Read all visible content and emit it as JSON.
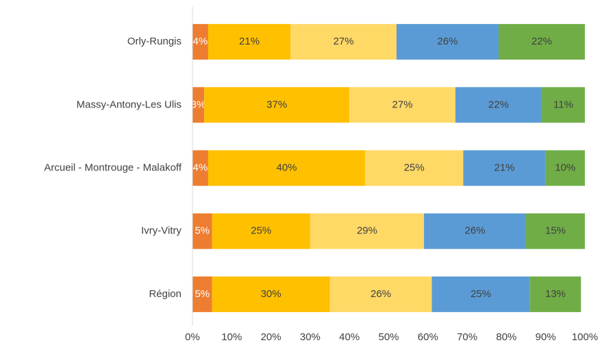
{
  "chart_data": {
    "type": "stacked-bar-horizontal",
    "categories": [
      "Orly-Rungis",
      "Massy-Antony-Les Ulis",
      "Arcueil - Montrouge - Malakoff",
      "Ivry-Vitry",
      "Région"
    ],
    "series": [
      {
        "color": "#ED7D31",
        "values": [
          4,
          3,
          4,
          5,
          5
        ],
        "value_labels": [
          "4%",
          "3%",
          "4%",
          "5%",
          "5%"
        ]
      },
      {
        "color": "#FFC000",
        "values": [
          21,
          37,
          40,
          25,
          30
        ],
        "value_labels": [
          "21%",
          "37%",
          "40%",
          "25%",
          "30%"
        ]
      },
      {
        "color": "#FFD966",
        "values": [
          27,
          27,
          25,
          29,
          26
        ],
        "value_labels": [
          "27%",
          "27%",
          "25%",
          "29%",
          "26%"
        ]
      },
      {
        "color": "#5B9BD5",
        "values": [
          26,
          22,
          21,
          26,
          25
        ],
        "value_labels": [
          "26%",
          "22%",
          "21%",
          "26%",
          "25%"
        ]
      },
      {
        "color": "#70AD47",
        "values": [
          22,
          11,
          10,
          15,
          13
        ],
        "value_labels": [
          "22%",
          "11%",
          "10%",
          "15%",
          "13%"
        ]
      }
    ],
    "xlim": [
      0,
      100
    ],
    "xticks": [
      {
        "value": 0,
        "label": "0%"
      },
      {
        "value": 10,
        "label": "10%"
      },
      {
        "value": 20,
        "label": "20%"
      },
      {
        "value": 30,
        "label": "30%"
      },
      {
        "value": 40,
        "label": "40%"
      },
      {
        "value": 50,
        "label": "50%"
      },
      {
        "value": 60,
        "label": "60%"
      },
      {
        "value": 70,
        "label": "70%"
      },
      {
        "value": 80,
        "label": "80%"
      },
      {
        "value": 90,
        "label": "90%"
      },
      {
        "value": 100,
        "label": "100%"
      }
    ]
  }
}
